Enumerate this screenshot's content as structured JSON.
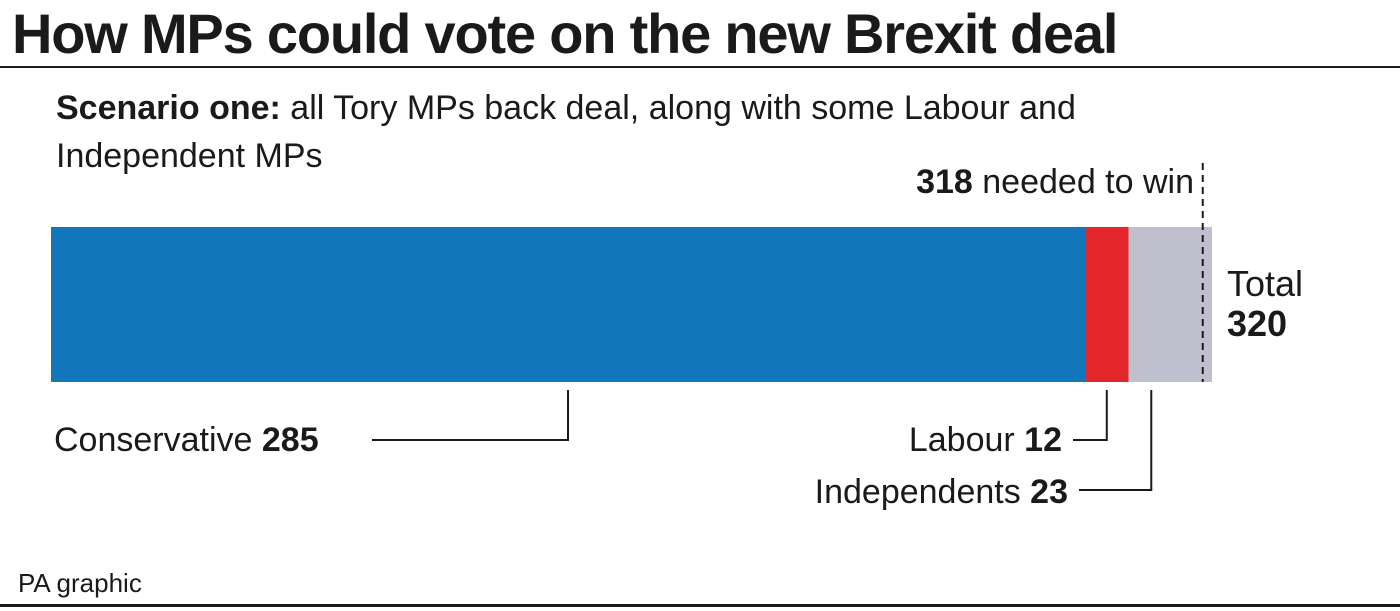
{
  "title": "How MPs could vote on the new Brexit deal",
  "subtitle_lead": "Scenario one:",
  "subtitle_rest": " all Tory MPs back deal, along with some Labour and Independent MPs",
  "threshold": {
    "value": "318",
    "text": " needed to win"
  },
  "total": {
    "label": "Total",
    "value": "320"
  },
  "source": "PA graphic",
  "chart_data": {
    "type": "bar",
    "orientation": "horizontal-stacked",
    "title": "How MPs could vote on the new Brexit deal",
    "categories": [
      "Conservative",
      "Labour",
      "Independents"
    ],
    "values": [
      285,
      12,
      23
    ],
    "colors": [
      "#1276bb",
      "#e3262b",
      "#c0bfcd"
    ],
    "threshold": 318,
    "total": 320,
    "xlim": [
      0,
      320
    ]
  },
  "labels": [
    {
      "name": "Conservative",
      "value": "285"
    },
    {
      "name": "Labour",
      "value": "12"
    },
    {
      "name": "Independents",
      "value": "23"
    }
  ]
}
